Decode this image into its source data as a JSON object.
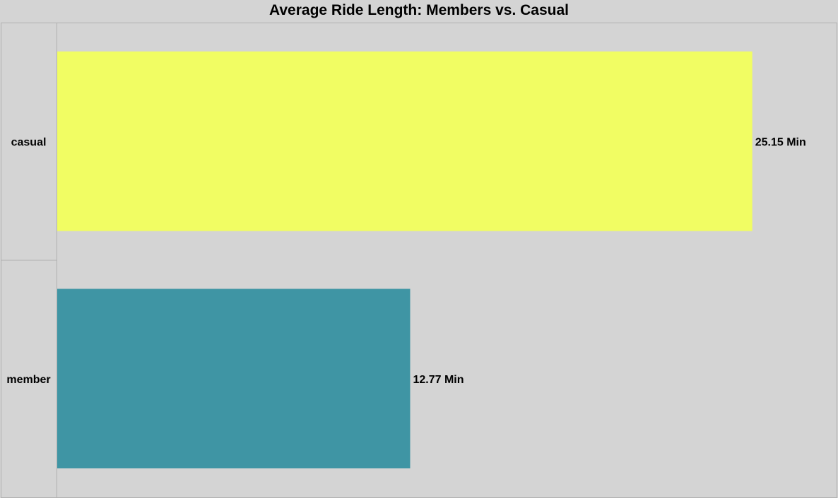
{
  "chart_data": {
    "type": "bar",
    "orientation": "horizontal",
    "title": "Average Ride Length: Members vs. Casual",
    "xlabel": "",
    "ylabel": "",
    "categories": [
      "casual",
      "member"
    ],
    "values": [
      25.15,
      12.77
    ],
    "value_labels": [
      "25.15 Min",
      "12.77 Min"
    ],
    "colors": [
      "#f1fd63",
      "#3f95a4"
    ],
    "xlim": [
      0,
      28.2
    ],
    "grid": false,
    "legend": "none"
  }
}
